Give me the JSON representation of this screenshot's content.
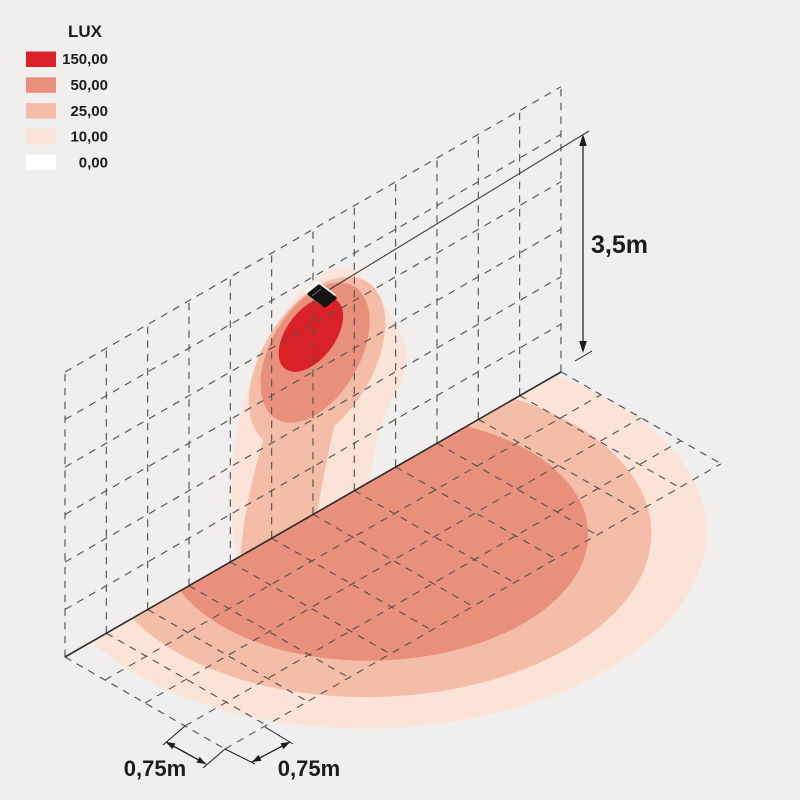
{
  "legend": {
    "title": "LUX",
    "items": [
      {
        "label": "150,00",
        "color": "#d92128"
      },
      {
        "label": "50,00",
        "color": "#e8907b"
      },
      {
        "label": "25,00",
        "color": "#f3bda7"
      },
      {
        "label": "10,00",
        "color": "#fbe3d8"
      },
      {
        "label": "0,00",
        "color": "#ffffff"
      }
    ]
  },
  "dimensions": {
    "height_label": "3,5m",
    "cell_depth_label": "0,75m",
    "cell_width_label": "0,75m"
  },
  "scene": {
    "background": "#f0efed",
    "grid_color": "#545454",
    "edge_color": "#2b2b2b",
    "dimension_color": "#1c1c1c",
    "reference_line_color": "#3c3c3c",
    "luminaire_color": "#141414",
    "luminaire_rim_color": "#f8f8f8",
    "wall_cols": 12,
    "wall_rows": 6,
    "floor_cols": 12,
    "floor_rows": 4
  }
}
